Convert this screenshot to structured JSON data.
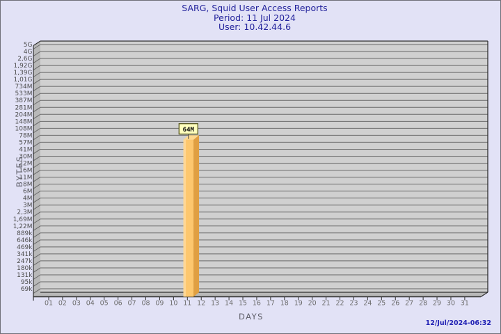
{
  "chart_data": {
    "type": "bar",
    "title": "SARG, Squid User Access Reports",
    "period": "Period: 11 Jul 2024",
    "user": "User: 10.42.44.6",
    "xlabel": "DAYS",
    "ylabel": "BYTES",
    "yscale": "log",
    "ylim": [
      "69k",
      "5G"
    ],
    "grid": "horizontal",
    "yticks": [
      "5G",
      "4G",
      "2,6G",
      "1,92G",
      "1,39G",
      "1,01G",
      "734M",
      "533M",
      "387M",
      "281M",
      "204M",
      "148M",
      "108M",
      "78M",
      "57M",
      "41M",
      "30M",
      "22M",
      "16M",
      "11M",
      "8M",
      "6M",
      "4M",
      "3M",
      "2,3M",
      "1,69M",
      "1,22M",
      "889k",
      "646k",
      "469k",
      "341k",
      "247k",
      "180k",
      "131k",
      "95k",
      "69k"
    ],
    "xticks": [
      "01",
      "02",
      "03",
      "04",
      "05",
      "06",
      "07",
      "08",
      "09",
      "10",
      "11",
      "12",
      "13",
      "14",
      "15",
      "16",
      "17",
      "18",
      "19",
      "20",
      "21",
      "22",
      "23",
      "24",
      "25",
      "26",
      "27",
      "28",
      "29",
      "30",
      "31"
    ],
    "bars": [
      {
        "day": "11",
        "label": "64M"
      }
    ],
    "timestamp": "12/Jul/2024-06:32",
    "colors": {
      "background": "#e2e2f6",
      "panel": "#d0d0d0",
      "wall": "#b8b8b8",
      "grid": "#686868",
      "frame_line": "#2f2f2f",
      "bar_front": "#fdc76e",
      "bar_highlight": "#ffd795",
      "bar_side": "#e09f42",
      "bar_top": "#ffd98e",
      "callout_fill": "#ffffbd",
      "callout_border": "#55551e",
      "title_color": "#23239c",
      "timestamp_color": "#2222b4"
    }
  }
}
